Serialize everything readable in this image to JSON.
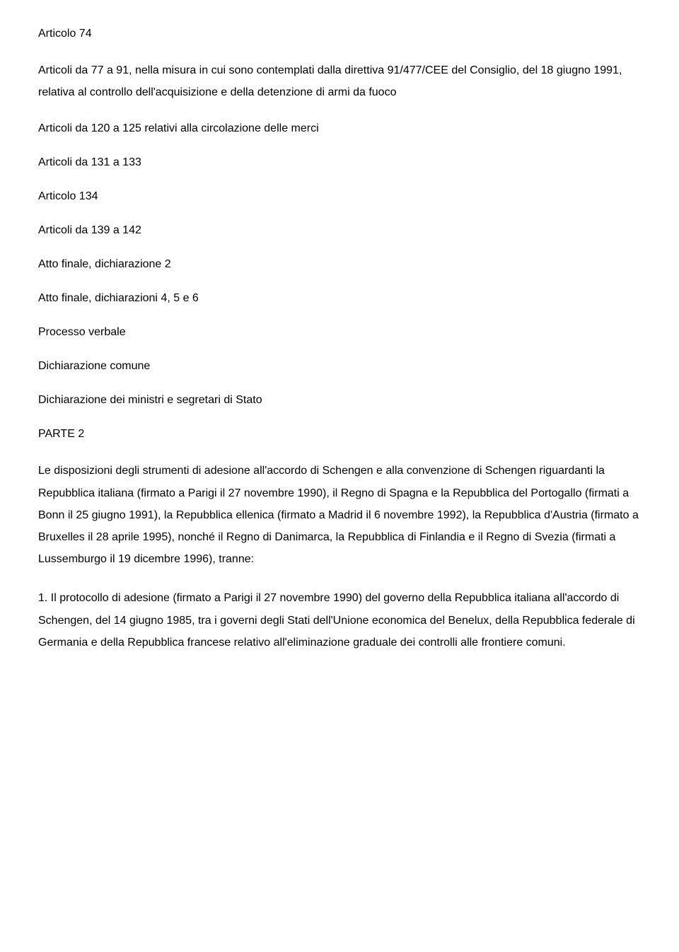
{
  "doc": {
    "background_color": "#ffffff",
    "text_color": "#000000",
    "font_family": "Arial",
    "font_size_pt": 12,
    "line_height_body": 1.95,
    "lines": {
      "l1": "Articolo 74",
      "l2": "Articoli da 77 a 91, nella misura in cui sono contemplati dalla direttiva 91/477/CEE del Consiglio, del 18 giugno 1991, relativa al controllo dell'acquisizione e della detenzione di armi da fuoco",
      "l3": "Articoli da 120 a 125 relativi alla circolazione delle merci",
      "l4": "Articoli da 131 a 133",
      "l5": "Articolo 134",
      "l6": "Articoli da 139 a 142",
      "l7": "Atto finale, dichiarazione 2",
      "l8": "Atto finale, dichiarazioni 4, 5 e 6",
      "l9": "Processo verbale",
      "l10": "Dichiarazione comune",
      "l11": "Dichiarazione dei ministri e segretari di Stato",
      "l12": "PARTE 2",
      "p1": "Le disposizioni degli strumenti di adesione all'accordo di Schengen e alla convenzione di Schengen riguardanti la Repubblica italiana (firmato a Parigi il 27 novembre 1990), il Regno di Spagna e la Repubblica del Portogallo (firmati a Bonn il 25 giugno 1991), la Repubblica ellenica (firmato a Madrid il 6 novembre 1992), la Repubblica d'Austria (firmato a Bruxelles il 28 aprile 1995), nonché il Regno di Danimarca, la Repubblica di Finlandia e il Regno di Svezia (firmati a Lussemburgo il 19 dicembre 1996), tranne:",
      "p2": "1. Il protocollo di adesione (firmato a Parigi il 27 novembre 1990) del governo della Repubblica italiana all'accordo di Schengen, del 14 giugno 1985, tra i governi degli Stati dell'Unione economica del Benelux, della Repubblica federale di Germania e della Repubblica francese relativo all'eliminazione graduale dei controlli alle frontiere comuni."
    }
  }
}
